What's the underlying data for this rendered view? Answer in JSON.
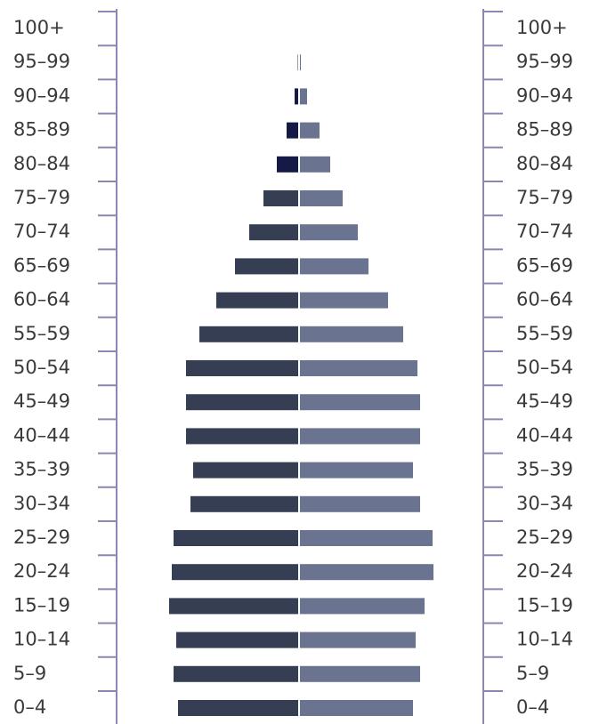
{
  "chart_data": {
    "type": "pyramid",
    "categories": [
      "100+",
      "95–99",
      "90–94",
      "85–89",
      "80–84",
      "75–79",
      "70–74",
      "65–69",
      "60–64",
      "55–59",
      "50–54",
      "45–49",
      "40–44",
      "35–39",
      "30–34",
      "25–29",
      "20–24",
      "15–19",
      "10–14",
      "5–9",
      "0–4"
    ],
    "xlim": [
      0,
      160
    ],
    "series": [
      {
        "side": "left",
        "color": "#353e52",
        "colors": [
          "#353e52",
          "#353e52",
          "#141a45",
          "#141a45",
          "#141a45",
          "#353e52",
          "#353e52",
          "#353e52",
          "#353e52",
          "#353e52",
          "#353e52",
          "#353e52",
          "#353e52",
          "#353e52",
          "#353e52",
          "#353e52",
          "#353e52",
          "#353e52",
          "#353e52",
          "#353e52",
          "#353e52"
        ],
        "values": [
          0,
          0.5,
          4,
          13,
          24,
          39,
          55,
          71,
          92,
          111,
          126,
          126,
          126,
          118,
          121,
          140,
          142,
          145,
          137,
          140,
          135
        ]
      },
      {
        "side": "right",
        "color": "#6a7390",
        "values": [
          0,
          1,
          8,
          22,
          34,
          48,
          65,
          77,
          99,
          116,
          132,
          135,
          135,
          127,
          135,
          149,
          150,
          140,
          130,
          135,
          127
        ]
      }
    ]
  }
}
